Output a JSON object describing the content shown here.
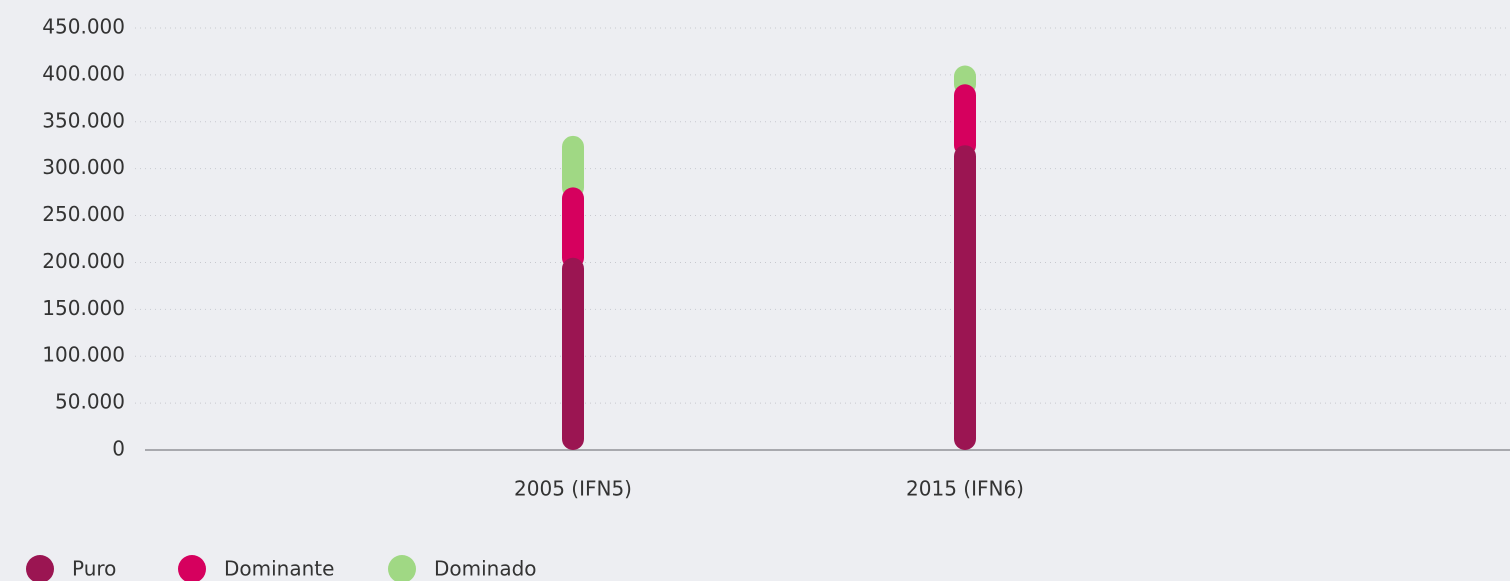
{
  "chart_data": {
    "type": "stacked_bar",
    "categories": [
      "2005 (IFN5)",
      "2015 (IFN6)"
    ],
    "series": [
      {
        "name": "Puro",
        "color": "#9b1552",
        "values": [
          205000,
          325000
        ]
      },
      {
        "name": "Dominante",
        "color": "#d6005e",
        "values": [
          75000,
          65000
        ]
      },
      {
        "name": "Dominado",
        "color": "#a0d884",
        "values": [
          55000,
          20000
        ]
      }
    ],
    "ylim": [
      0,
      450000
    ],
    "yticks": [
      0,
      {
        "value": 50000,
        "label": "50.000"
      },
      {
        "value": 100000,
        "label": "100.000"
      },
      {
        "value": 150000,
        "label": "150.000"
      },
      {
        "value": 200000,
        "label": "200.000"
      },
      {
        "value": 250000,
        "label": "250.000"
      },
      {
        "value": 300000,
        "label": "300.000"
      },
      {
        "value": 350000,
        "label": "350.000"
      },
      {
        "value": 400000,
        "label": "400.000"
      },
      {
        "value": 450000,
        "label": "450.000"
      }
    ],
    "grid": true
  }
}
